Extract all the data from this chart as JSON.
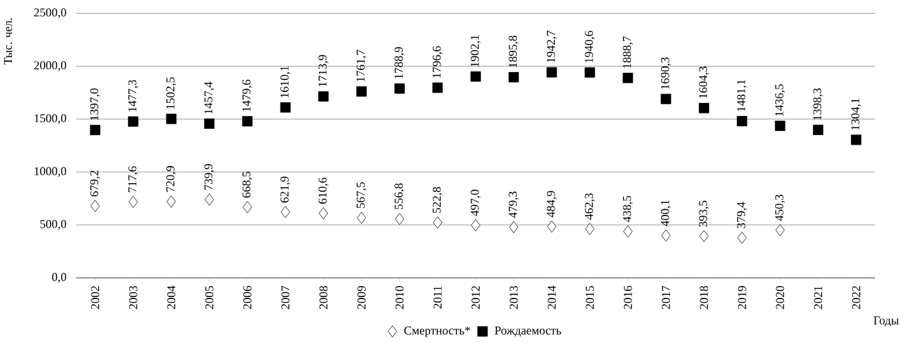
{
  "chart_data": {
    "type": "scatter",
    "ylabel": "Тыс. чел.",
    "xlabel": "Годы",
    "categories": [
      "2002",
      "2003",
      "2004",
      "2005",
      "2006",
      "2007",
      "2008",
      "2009",
      "2010",
      "2011",
      "2012",
      "2013",
      "2014",
      "2015",
      "2016",
      "2017",
      "2018",
      "2019",
      "2020",
      "2021",
      "2022"
    ],
    "series": [
      {
        "name": "Смертность*",
        "color": "#ffffff",
        "marker": "diamond",
        "values": [
          679.2,
          717.6,
          720.9,
          739.9,
          668.5,
          621.9,
          610.6,
          567.5,
          556.8,
          522.8,
          497.0,
          479.3,
          484.9,
          462.3,
          438.5,
          400.1,
          393.5,
          379.4,
          450.3,
          null,
          null
        ],
        "value_labels": [
          "679,2",
          "717,6",
          "720,9",
          "739,9",
          "668,5",
          "621,9",
          "610,6",
          "567,5",
          "556,8",
          "522,8",
          "497,0",
          "479,3",
          "484,9",
          "462,3",
          "438,5",
          "400,1",
          "393,5",
          "379,4",
          "450,3",
          null,
          null
        ]
      },
      {
        "name": "Рождаемость",
        "color": "#000000",
        "marker": "square",
        "values": [
          1397.0,
          1477.3,
          1502.5,
          1457.4,
          1479.6,
          1610.1,
          1713.9,
          1761.7,
          1788.9,
          1796.6,
          1902.1,
          1895.8,
          1942.7,
          1940.6,
          1888.7,
          1690.3,
          1604.3,
          1481.1,
          1436.5,
          1398.3,
          1304.1
        ],
        "value_labels": [
          "1397,0",
          "1477,3",
          "1502,5",
          "1457,4",
          "1479,6",
          "1610,1",
          "1713,9",
          "1761,7",
          "1788,9",
          "1796,6",
          "1902,1",
          "1895,8",
          "1942,7",
          "1940,6",
          "1888,7",
          "1690,3",
          "1604,3",
          "1481,1",
          "1436,5",
          "1398,3",
          "1304,1"
        ]
      }
    ],
    "ylim": [
      0,
      2500
    ],
    "yticks": [
      {
        "value": 0,
        "label": "0,0"
      },
      {
        "value": 500,
        "label": "500,0"
      },
      {
        "value": 1000,
        "label": "1000,0"
      },
      {
        "value": 1500,
        "label": "1500,0"
      },
      {
        "value": 2000,
        "label": "2000,0"
      },
      {
        "value": 2500,
        "label": "2500,0"
      }
    ],
    "grid": "y",
    "legend": "bottom"
  }
}
